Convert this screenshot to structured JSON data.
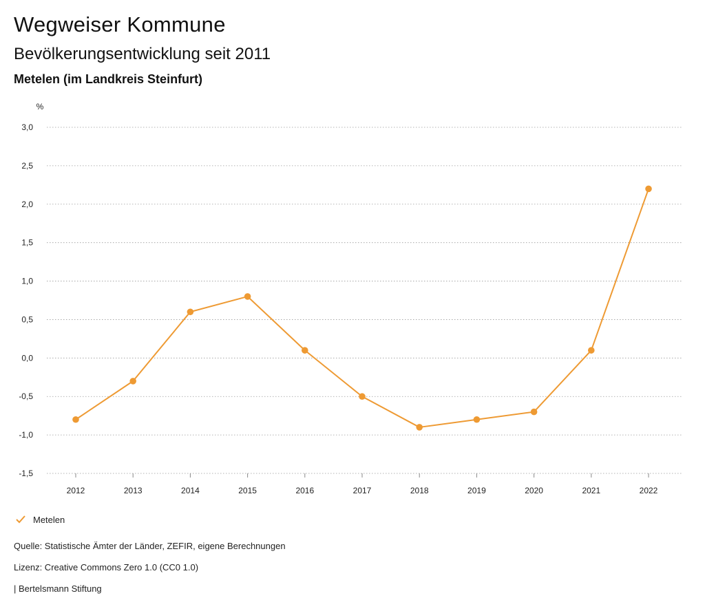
{
  "header": {
    "title": "Wegweiser Kommune",
    "subtitle": "Bevölkerungsentwicklung seit 2011",
    "region": "Metelen (im Landkreis Steinfurt)"
  },
  "chart_data": {
    "type": "line",
    "title": "Bevölkerungsentwicklung seit 2011",
    "ylabel": "%",
    "xlabel": "",
    "categories": [
      "2012",
      "2013",
      "2014",
      "2015",
      "2016",
      "2017",
      "2018",
      "2019",
      "2020",
      "2021",
      "2022"
    ],
    "series": [
      {
        "name": "Metelen",
        "values": [
          -0.8,
          -0.3,
          0.6,
          0.8,
          0.1,
          -0.5,
          -0.9,
          -0.8,
          -0.7,
          0.1,
          2.2
        ]
      }
    ],
    "ylim": [
      -1.5,
      3.0
    ],
    "yticks": [
      3.0,
      2.5,
      2.0,
      1.5,
      1.0,
      0.5,
      0.0,
      -0.5,
      -1.0,
      -1.5
    ],
    "ytick_labels": [
      "3,0",
      "2,5",
      "2,0",
      "1,5",
      "1,0",
      "0,5",
      "0,0",
      "-0,5",
      "-1,0",
      "-1,5"
    ],
    "grid": true,
    "legend_position": "bottom-left",
    "color": "#EE9A33"
  },
  "legend": {
    "label": "Metelen",
    "icon": "check-icon"
  },
  "footer": {
    "source": "Quelle: Statistische Ämter der Länder, ZEFIR, eigene Berechnungen",
    "license": "Lizenz: Creative Commons Zero 1.0 (CC0 1.0)",
    "publisher": "| Bertelsmann Stiftung"
  }
}
